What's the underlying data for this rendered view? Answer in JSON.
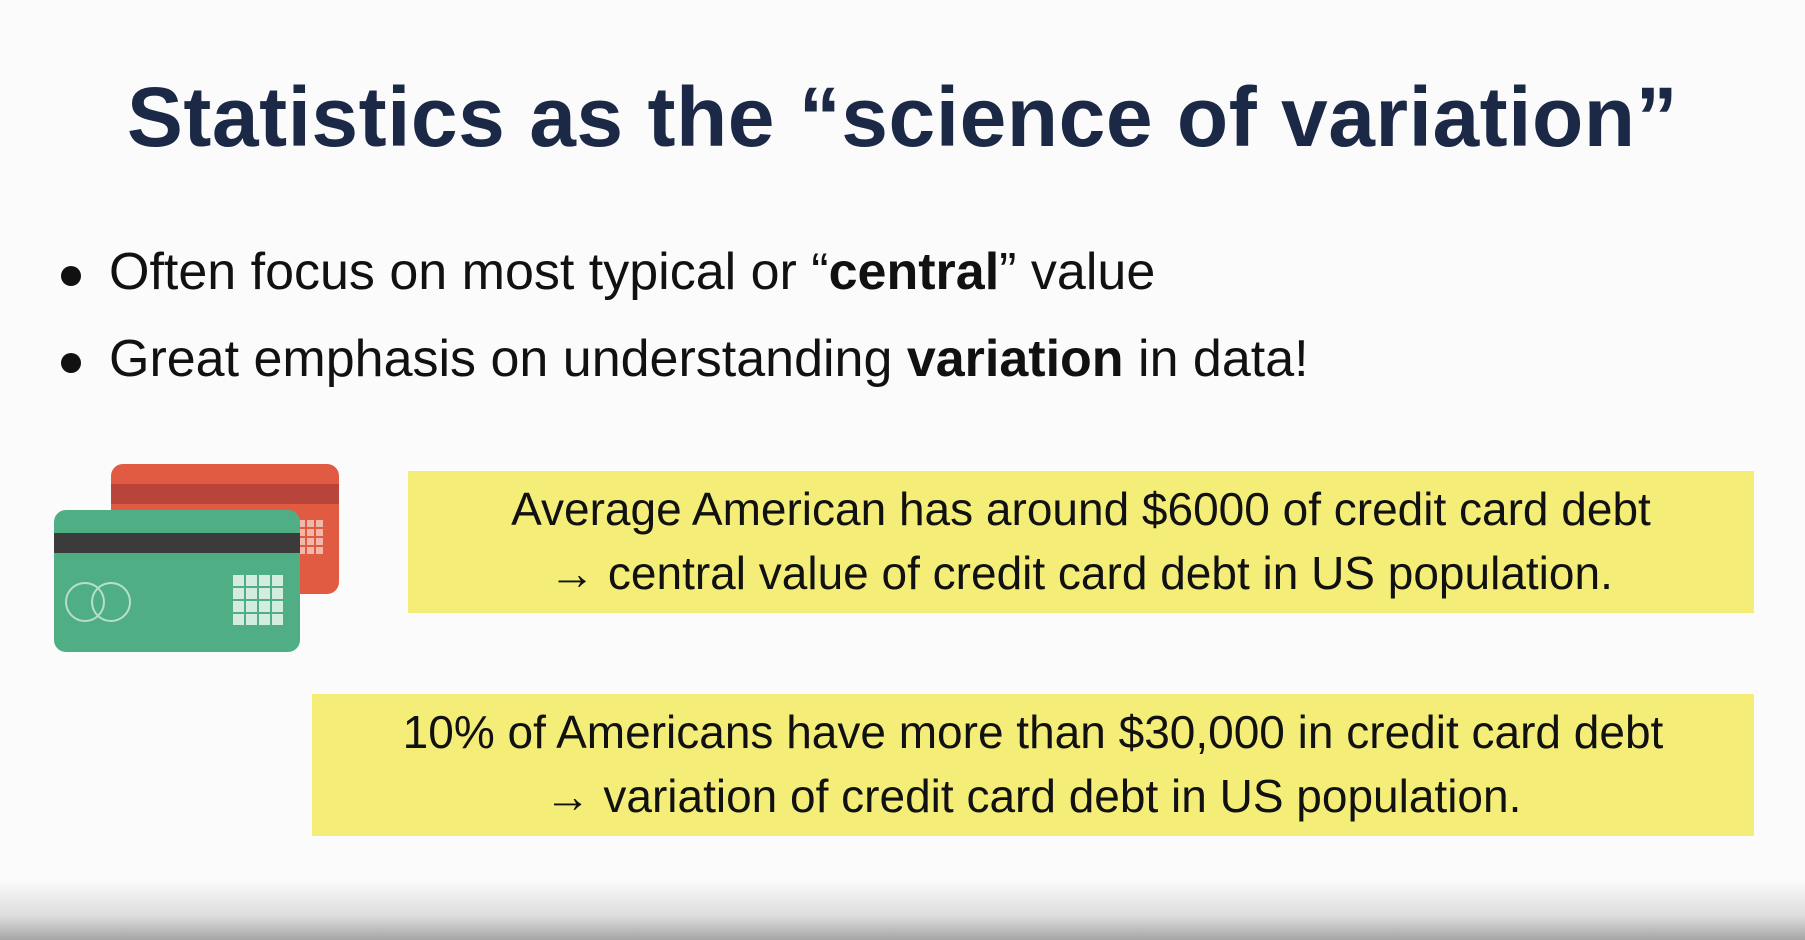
{
  "slide": {
    "title": "Statistics as the “science of variation”",
    "bullets": [
      {
        "before": "Often focus on most typical or “",
        "bold": "central",
        "after": "” value"
      },
      {
        "before": "Great emphasis on understanding ",
        "bold": "variation",
        "after": " in data!"
      }
    ],
    "callouts": [
      {
        "line1": "Average American has around $6000 of credit card debt",
        "line2": "→ central value of credit card debt in US population."
      },
      {
        "line1": "10% of Americans have more than $30,000 in credit card debt",
        "line2": "→ variation of credit card debt in US population."
      }
    ],
    "illustration": {
      "icon": "credit-cards-icon",
      "back_card_color": "#e15a42",
      "front_card_color": "#4fae83",
      "stripe_color": "#3b3b3b",
      "highlight_color": "#f4ee78",
      "title_color": "#1b2946"
    }
  }
}
